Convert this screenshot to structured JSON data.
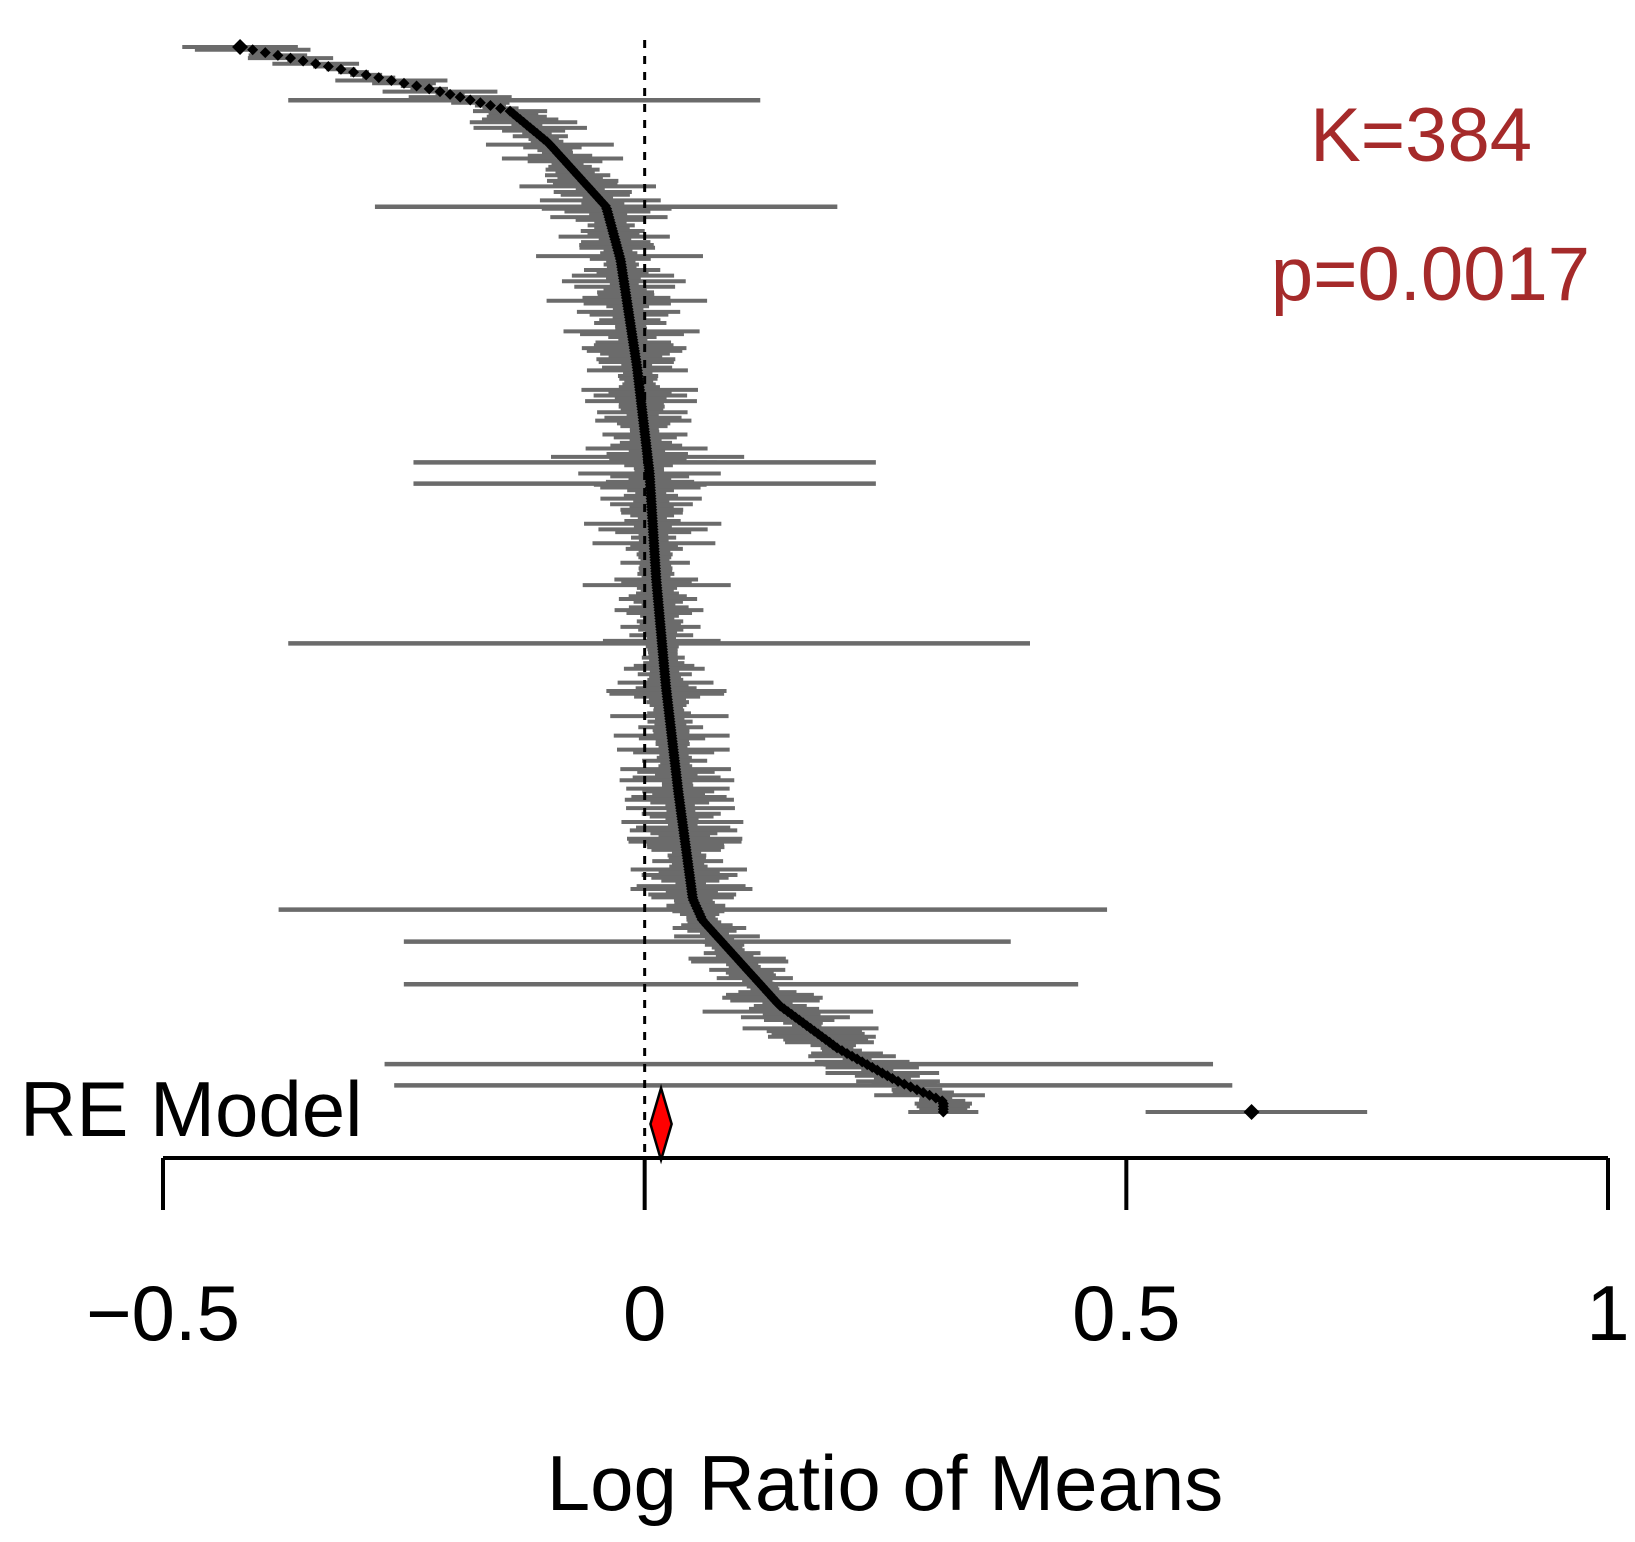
{
  "chart_data": {
    "type": "forest",
    "xlabel": "Log Ratio of Means",
    "xlim": [
      -0.5,
      1
    ],
    "xticks": [
      -0.5,
      0,
      0.5,
      1
    ],
    "xtick_labels": [
      "−0.5",
      "0",
      "0.5",
      "1"
    ],
    "reference_line": 0,
    "num_studies_label": "K=384",
    "p_value_label": "p=0.0017",
    "num_studies": 384,
    "p_value": 0.0017,
    "pooled": {
      "label": "RE Model",
      "estimate": 0.017,
      "ci_lower": 0.006,
      "ci_upper": 0.028
    },
    "estimate_curve": [
      [
        0.0,
        -0.42
      ],
      [
        0.02,
        -0.32
      ],
      [
        0.04,
        -0.22
      ],
      [
        0.06,
        -0.14
      ],
      [
        0.09,
        -0.1
      ],
      [
        0.12,
        -0.07
      ],
      [
        0.15,
        -0.04
      ],
      [
        0.2,
        -0.025
      ],
      [
        0.3,
        -0.008
      ],
      [
        0.4,
        0.005
      ],
      [
        0.5,
        0.012
      ],
      [
        0.6,
        0.022
      ],
      [
        0.7,
        0.035
      ],
      [
        0.8,
        0.05
      ],
      [
        0.82,
        0.06
      ],
      [
        0.86,
        0.1
      ],
      [
        0.9,
        0.14
      ],
      [
        0.94,
        0.2
      ],
      [
        0.97,
        0.26
      ],
      [
        0.99,
        0.31
      ]
    ],
    "highlighted_points": [
      {
        "estimate": -0.42,
        "ci_lower": -0.48,
        "ci_upper": -0.36
      },
      {
        "estimate": 0.63,
        "ci_lower": 0.52,
        "ci_upper": 0.75
      }
    ],
    "wide_intervals": [
      {
        "rank": 0.05,
        "ci_lower": -0.37,
        "ci_upper": 0.12
      },
      {
        "rank": 0.15,
        "ci_lower": -0.28,
        "ci_upper": 0.2
      },
      {
        "rank": 0.39,
        "ci_lower": -0.24,
        "ci_upper": 0.24
      },
      {
        "rank": 0.41,
        "ci_lower": -0.24,
        "ci_upper": 0.24
      },
      {
        "rank": 0.56,
        "ci_lower": -0.37,
        "ci_upper": 0.4
      },
      {
        "rank": 0.81,
        "ci_lower": -0.38,
        "ci_upper": 0.48
      },
      {
        "rank": 0.84,
        "ci_lower": -0.25,
        "ci_upper": 0.38
      },
      {
        "rank": 0.88,
        "ci_lower": -0.25,
        "ci_upper": 0.45
      },
      {
        "rank": 0.955,
        "ci_lower": -0.27,
        "ci_upper": 0.59
      },
      {
        "rank": 0.975,
        "ci_lower": -0.26,
        "ci_upper": 0.61
      }
    ],
    "colors": {
      "ci": "#6b6b6b",
      "estimate": "#000000",
      "pooled": "#ff0000",
      "annotation": "#a52a2a",
      "axis": "#000000"
    }
  }
}
